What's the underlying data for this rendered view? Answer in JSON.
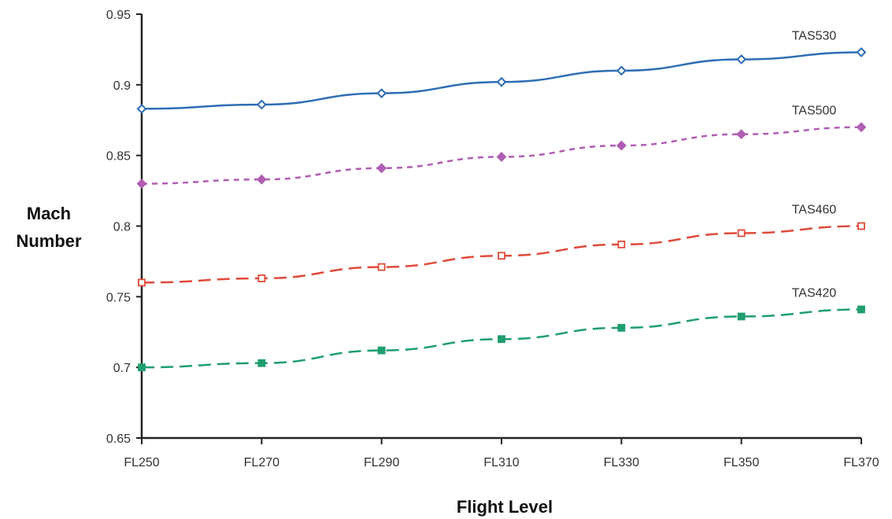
{
  "chart_data": {
    "type": "line",
    "xlabel": "Flight Level",
    "ylabel_lines": [
      "Mach",
      "Number"
    ],
    "categories": [
      "FL250",
      "FL270",
      "FL290",
      "FL310",
      "FL330",
      "FL350",
      "FL370"
    ],
    "ylim": [
      0.65,
      0.95
    ],
    "yticks": [
      "0.65",
      "0.7",
      "0.75",
      "0.8",
      "0.85",
      "0.9",
      "0.95"
    ],
    "grid": false,
    "series": [
      {
        "name": "TAS530",
        "values": [
          0.883,
          0.886,
          0.894,
          0.902,
          0.91,
          0.918,
          0.923
        ],
        "color": "#2e6db4",
        "dash": "solid",
        "marker": "open-diamond"
      },
      {
        "name": "TAS500",
        "values": [
          0.83,
          0.833,
          0.841,
          0.849,
          0.857,
          0.865,
          0.87
        ],
        "color": "#b05db3",
        "dash": "short",
        "marker": "filled-diamond"
      },
      {
        "name": "TAS460",
        "values": [
          0.76,
          0.763,
          0.771,
          0.779,
          0.787,
          0.795,
          0.8
        ],
        "color": "#e04a3a",
        "dash": "long",
        "marker": "open-square"
      },
      {
        "name": "TAS420",
        "values": [
          0.7,
          0.703,
          0.712,
          0.72,
          0.728,
          0.736,
          0.741
        ],
        "color": "#1f9e6e",
        "dash": "long",
        "marker": "filled-square"
      }
    ]
  }
}
